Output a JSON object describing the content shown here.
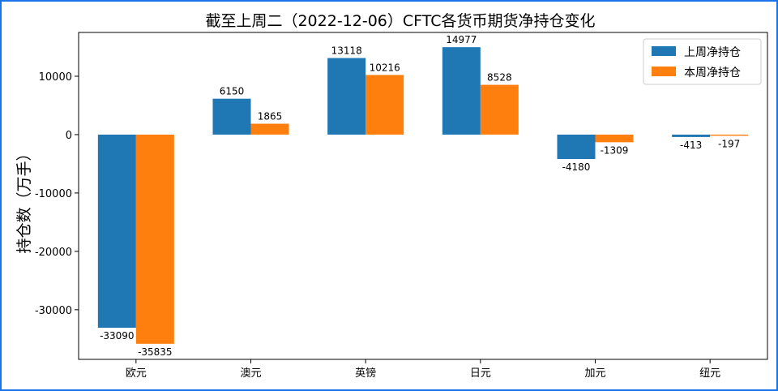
{
  "chart_data": {
    "type": "bar",
    "title": "截至上周二（2022-12-06）CFTC各货币期货净持仓变化",
    "xlabel": "",
    "ylabel": "持仓数（万手）",
    "categories": [
      "欧元",
      "澳元",
      "英镑",
      "日元",
      "加元",
      "纽元"
    ],
    "series": [
      {
        "name": "上周净持仓",
        "color": "#1f77b4",
        "values": [
          -33090,
          6150,
          13118,
          14977,
          -4180,
          -413
        ]
      },
      {
        "name": "本周净持仓",
        "color": "#ff7f0e",
        "values": [
          -35835,
          1865,
          10216,
          8528,
          -1309,
          -197
        ]
      }
    ],
    "ylim": [
      -38500,
      17500
    ],
    "yticks": [
      10000,
      0,
      -10000,
      -20000,
      -30000
    ],
    "legend": "top-right",
    "grid": false
  }
}
